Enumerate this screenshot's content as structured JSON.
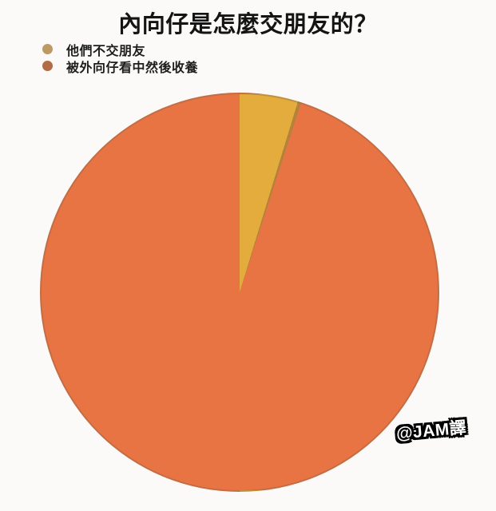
{
  "title": "內向仔是怎麼交朋友的？",
  "legend": {
    "items": [
      {
        "label": "他們不交朋友",
        "dot_color": "#bd9a62"
      },
      {
        "label": "被外向仔看中然後收養",
        "dot_color": "#b26b44"
      }
    ]
  },
  "watermark": "@JAM譯",
  "colors": {
    "background": "#fbfaf8",
    "slice_divider": "#b5823a",
    "text": "#141414"
  },
  "chart_data": {
    "type": "pie",
    "title": "內向仔是怎麼交朋友的？",
    "labels": [
      "他們不交朋友",
      "被外向仔看中然後收養"
    ],
    "values": [
      5,
      95
    ],
    "colors": [
      "#e4ac3d",
      "#e97443"
    ],
    "start_angle_deg": 0,
    "direction": "clockwise",
    "legend_position": "top-left",
    "data_labels": false,
    "annotations": [
      "@JAM譯"
    ]
  }
}
